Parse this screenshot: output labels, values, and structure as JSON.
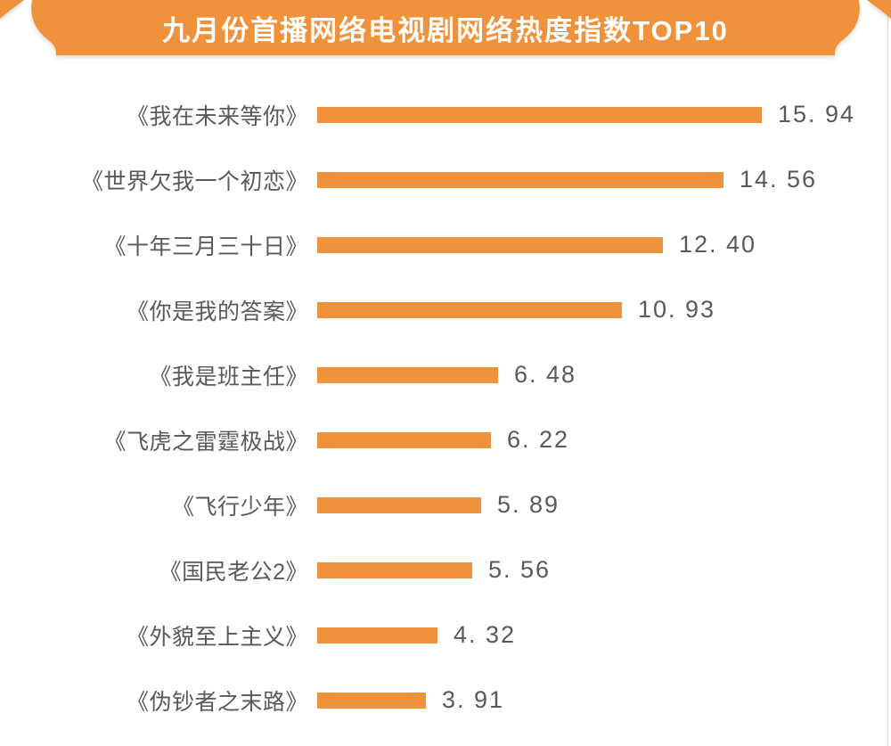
{
  "banner": {
    "title": "九月份首播网络电视剧网络热度指数TOP10",
    "color": "#F0913C",
    "text_color": "#ffffff"
  },
  "page": {
    "background": "#ffffff",
    "edge_line_color": "#dcdcdc"
  },
  "chart_data": {
    "type": "bar",
    "orientation": "horizontal",
    "title": "九月份首播网络电视剧网络热度指数TOP10",
    "categories": [
      "《我在未来等你》",
      "《世界欠我一个初恋》",
      "《十年三月三十日》",
      "《你是我的答案》",
      "《我是班主任》",
      "《飞虎之雷霆极战》",
      "《飞行少年》",
      "《国民老公2》",
      "《外貌至上主义》",
      "《伪钞者之末路》"
    ],
    "values": [
      15.94,
      14.56,
      12.4,
      10.93,
      6.48,
      6.22,
      5.89,
      5.56,
      4.32,
      3.91
    ],
    "value_labels": [
      "15. 94",
      "14. 56",
      "12. 40",
      "10. 93",
      "6. 48",
      "6. 22",
      "5. 89",
      "5. 56",
      "4. 32",
      "3. 91"
    ],
    "xlabel": "",
    "ylabel": "",
    "xlim": [
      0,
      16
    ],
    "grid": false,
    "legend": false,
    "bar_color": "#F0913C",
    "label_color": "#595959"
  }
}
